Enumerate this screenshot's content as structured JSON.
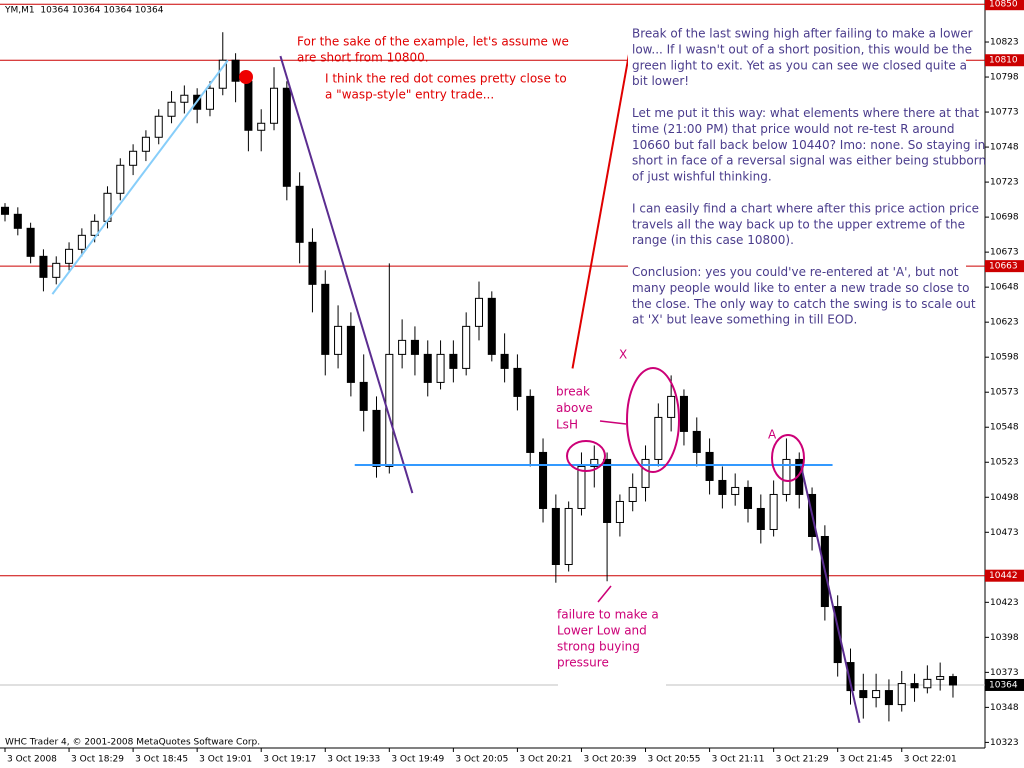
{
  "chart_data": {
    "type": "candlestick",
    "header": "YM,M1  10364 10364 10364 10364",
    "footer": "WHC Trader 4, © 2001-2008 MetaQuotes Software Corp.",
    "xlim": [
      0,
      76.5
    ],
    "ylim": [
      10319,
      10853
    ],
    "xticks": [
      {
        "value": 0,
        "label": "3 Oct 2008"
      },
      {
        "value": 5,
        "label": "3 Oct 18:29"
      },
      {
        "value": 10,
        "label": "3 Oct 18:45"
      },
      {
        "value": 15,
        "label": "3 Oct 19:01"
      },
      {
        "value": 20,
        "label": "3 Oct 19:17"
      },
      {
        "value": 25,
        "label": "3 Oct 19:33"
      },
      {
        "value": 30,
        "label": "3 Oct 19:49"
      },
      {
        "value": 35,
        "label": "3 Oct 20:05"
      },
      {
        "value": 40,
        "label": "3 Oct 20:21"
      },
      {
        "value": 45,
        "label": "3 Oct 20:39"
      },
      {
        "value": 50,
        "label": "3 Oct 20:55"
      },
      {
        "value": 55,
        "label": "3 Oct 21:11"
      },
      {
        "value": 60,
        "label": "3 Oct 21:29"
      },
      {
        "value": 65,
        "label": "3 Oct 21:45"
      },
      {
        "value": 70,
        "label": "3 Oct 22:01"
      }
    ],
    "yticks": [
      10823,
      10798,
      10773,
      10748,
      10723,
      10698,
      10673,
      10648,
      10623,
      10598,
      10573,
      10548,
      10523,
      10498,
      10473,
      10423,
      10398,
      10373,
      10348,
      10323
    ],
    "up_color": "#ffffff",
    "down_color": "#000000",
    "open": [
      10705,
      10700,
      10690,
      10670,
      10655,
      10665,
      10675,
      10685,
      10695,
      10715,
      10735,
      10745,
      10755,
      10770,
      10780,
      10785,
      10775,
      10790,
      10810,
      10795,
      10760,
      10765,
      10790,
      10720,
      10680,
      10650,
      10600,
      10620,
      10580,
      10560,
      10520,
      10600,
      10610,
      10600,
      10580,
      10600,
      10590,
      10620,
      10640,
      10600,
      10590,
      10570,
      10530,
      10490,
      10450,
      10490,
      10520,
      10525,
      10480,
      10495,
      10505,
      10525,
      10555,
      10570,
      10545,
      10530,
      10510,
      10500,
      10505,
      10490,
      10475,
      10500,
      10525,
      10500,
      10470,
      10420,
      10380,
      10360,
      10355,
      10360,
      10350,
      10365,
      10362,
      10368,
      10370
    ],
    "high": [
      10708,
      10705,
      10694,
      10675,
      10670,
      10680,
      10690,
      10700,
      10720,
      10740,
      10750,
      10760,
      10775,
      10788,
      10792,
      10790,
      10795,
      10830,
      10815,
      10800,
      10775,
      10805,
      10795,
      10730,
      10690,
      10660,
      10635,
      10630,
      10600,
      10570,
      10665,
      10625,
      10620,
      10610,
      10610,
      10610,
      10630,
      10652,
      10645,
      10615,
      10600,
      10575,
      10540,
      10500,
      10495,
      10530,
      10535,
      10530,
      10500,
      10515,
      10535,
      10565,
      10585,
      10575,
      10555,
      10540,
      10520,
      10515,
      10510,
      10500,
      10510,
      10540,
      10530,
      10505,
      10478,
      10428,
      10390,
      10372,
      10372,
      10368,
      10374,
      10372,
      10378,
      10380,
      10372
    ],
    "low": [
      10695,
      10685,
      10665,
      10645,
      10650,
      10660,
      10670,
      10680,
      10690,
      10710,
      10728,
      10738,
      10750,
      10765,
      10772,
      10765,
      10770,
      10785,
      10780,
      10745,
      10745,
      10760,
      10710,
      10665,
      10630,
      10585,
      10590,
      10570,
      10545,
      10512,
      10515,
      10590,
      10585,
      10570,
      10575,
      10580,
      10585,
      10610,
      10595,
      10580,
      10560,
      10520,
      10480,
      10437,
      10445,
      10485,
      10505,
      10438,
      10470,
      10488,
      10495,
      10520,
      10545,
      10535,
      10520,
      10500,
      10490,
      10492,
      10480,
      10465,
      10470,
      10495,
      10490,
      10460,
      10410,
      10370,
      10350,
      10340,
      10348,
      10338,
      10345,
      10352,
      10358,
      10360,
      10355
    ],
    "close": [
      10700,
      10690,
      10670,
      10655,
      10665,
      10675,
      10685,
      10695,
      10715,
      10735,
      10745,
      10755,
      10770,
      10780,
      10785,
      10775,
      10790,
      10810,
      10795,
      10760,
      10765,
      10790,
      10720,
      10680,
      10650,
      10600,
      10620,
      10580,
      10560,
      10520,
      10600,
      10610,
      10600,
      10580,
      10600,
      10590,
      10620,
      10640,
      10600,
      10590,
      10570,
      10530,
      10490,
      10450,
      10490,
      10520,
      10525,
      10480,
      10495,
      10505,
      10525,
      10555,
      10570,
      10545,
      10530,
      10510,
      10500,
      10505,
      10490,
      10475,
      10500,
      10525,
      10500,
      10470,
      10420,
      10380,
      10360,
      10355,
      10360,
      10350,
      10365,
      10362,
      10368,
      10370,
      10364
    ],
    "price_lines": [
      {
        "value": 10850,
        "color": "#cc0000",
        "label_color": "#cc0000"
      },
      {
        "value": 10810,
        "color": "#cc0000",
        "label_color": "#cc0000"
      },
      {
        "value": 10663,
        "color": "#cc0000",
        "label_color": "#cc0000"
      },
      {
        "value": 10442,
        "color": "#cc0000",
        "label_color": "#cc0000"
      },
      {
        "value": 10364,
        "color": "#c0c0c0",
        "label_color": "#000000"
      }
    ],
    "trendlines": [
      {
        "from": [
          3.7,
          10643
        ],
        "to": [
          17.4,
          10810
        ],
        "color": "#87cefa"
      },
      {
        "from": [
          21.5,
          10813
        ],
        "to": [
          31.8,
          10501
        ],
        "color": "#5b2d90"
      },
      {
        "from": [
          62.1,
          10522
        ],
        "to": [
          66.7,
          10337
        ],
        "color": "#5b2d90"
      },
      {
        "from": [
          44.3,
          10590
        ],
        "to": [
          48.9,
          10824
        ],
        "color": "#e00000"
      },
      {
        "from": [
          27.3,
          10521
        ],
        "to": [
          64.6,
          10521
        ],
        "color": "#3399ff"
      }
    ],
    "annotations": {
      "short": [
        "For the sake of the example, let's assume we",
        "are short from 10800."
      ],
      "dot": [
        "I think the red dot comes pretty close to",
        "a \"wasp-style\" entry trade..."
      ],
      "break": [
        "break",
        "above",
        "LsH"
      ],
      "x_mark": "X",
      "a_mark": "A",
      "failure": [
        "failure to make a",
        "Lower Low and",
        "strong buying",
        "pressure"
      ],
      "commentary": [
        [
          "Break of the last swing high after failing to make a lower",
          "low... If I wasn't out of a short position, this would be the",
          "green light to exit. Yet as you can see we closed quite a",
          "bit lower!"
        ],
        [
          "Let me put it this way: what elements where there at that",
          "time (21:00 PM) that price would not re-test R around",
          "10660 but fall back below 10440? Imo: none. So staying in",
          "short in face of a reversal signal was either being stubborn",
          "of just wishful thinking."
        ],
        [
          "I can easily find a chart where after this price action price",
          "travels all the way back up to the upper extreme of the",
          "range (in this case 10800)."
        ],
        [
          "Conclusion: yes you could've re-entered at 'A', but not",
          "many people would like to enter a new trade so close to",
          "the close. The only way to catch the swing is to scale out",
          "at 'X' but leave something in till EOD."
        ]
      ]
    }
  }
}
